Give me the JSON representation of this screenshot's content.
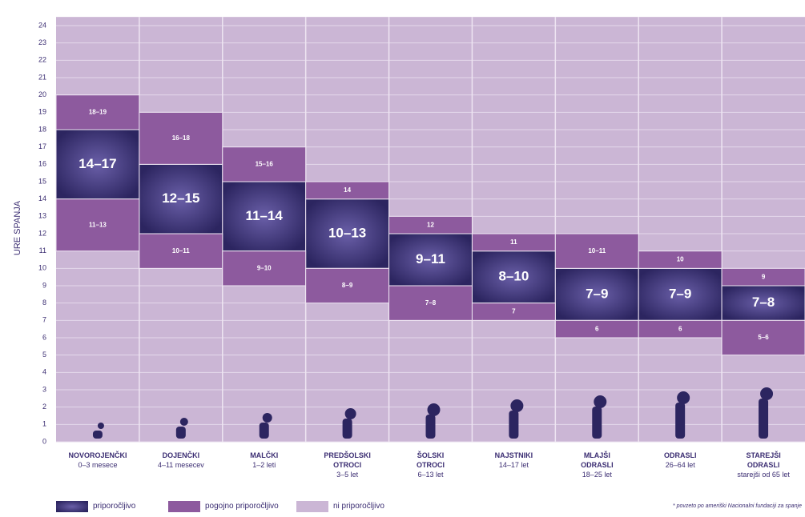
{
  "chart_data": {
    "type": "floating-bar",
    "y_label": "URE SPANJA",
    "categories": [
      "NOVOROJENČKI",
      "DOJENČKI",
      "MALČKI",
      "PREDŠOLSKI\nOTROCI",
      "ŠOLSKI\nOTROCI",
      "NAJSTNIKI",
      "MLAJŠI\nODRASLI",
      "ODRASLI",
      "STAREJŠI\nODRASLI"
    ],
    "age_labels": [
      "0–3 mesece",
      "4–11 mesecev",
      "1–2 leti",
      "3–5 let",
      "6–13 let",
      "14–17 let",
      "18–25 let",
      "26–64 let",
      "starejši od 65 let"
    ],
    "series": [
      {
        "name": "priporočljivo",
        "color": "#2c2560",
        "low": [
          14,
          12,
          11,
          10,
          9,
          8,
          7,
          7,
          7
        ],
        "high": [
          17,
          15,
          14,
          13,
          11,
          10,
          9,
          9,
          8
        ],
        "value_labels": [
          "14–17",
          "12–15",
          "11–14",
          "10–13",
          "9–11",
          "8–10",
          "7–9",
          "7–9",
          "7–8"
        ]
      },
      {
        "name": "pogojno priporočljivo",
        "color": "#8d5a9e",
        "low": [
          18,
          16,
          15,
          14,
          12,
          11,
          10,
          10,
          9
        ],
        "high": [
          19,
          18,
          16,
          14,
          12,
          11,
          11,
          10,
          9
        ],
        "value_labels": [
          "18–19",
          "16–18",
          "15–16",
          "14",
          "12",
          "11",
          "10–11",
          "10",
          "9"
        ]
      },
      {
        "name": "pogojno priporočljivo",
        "color": "#8d5a9e",
        "low": [
          11,
          10,
          9,
          8,
          7,
          7,
          6,
          6,
          5
        ],
        "high": [
          13,
          11,
          10,
          9,
          8,
          7,
          6,
          6,
          6
        ],
        "value_labels": [
          "11–13",
          "10–11",
          "9–10",
          "8–9",
          "7–8",
          "7",
          "6",
          "6",
          "5–6"
        ]
      },
      {
        "name": "ni priporočljivo",
        "color": "#cbb6d5"
      }
    ],
    "ylim": [
      0,
      24
    ],
    "yticks": [
      0,
      1,
      2,
      3,
      4,
      5,
      6,
      7,
      8,
      9,
      10,
      11,
      12,
      13,
      14,
      15,
      16,
      17,
      18,
      19,
      20,
      21,
      22,
      23,
      24
    ],
    "grid": true,
    "footnote": "* povzeto po ameriški Nacionalni fundaciji za spanje"
  }
}
